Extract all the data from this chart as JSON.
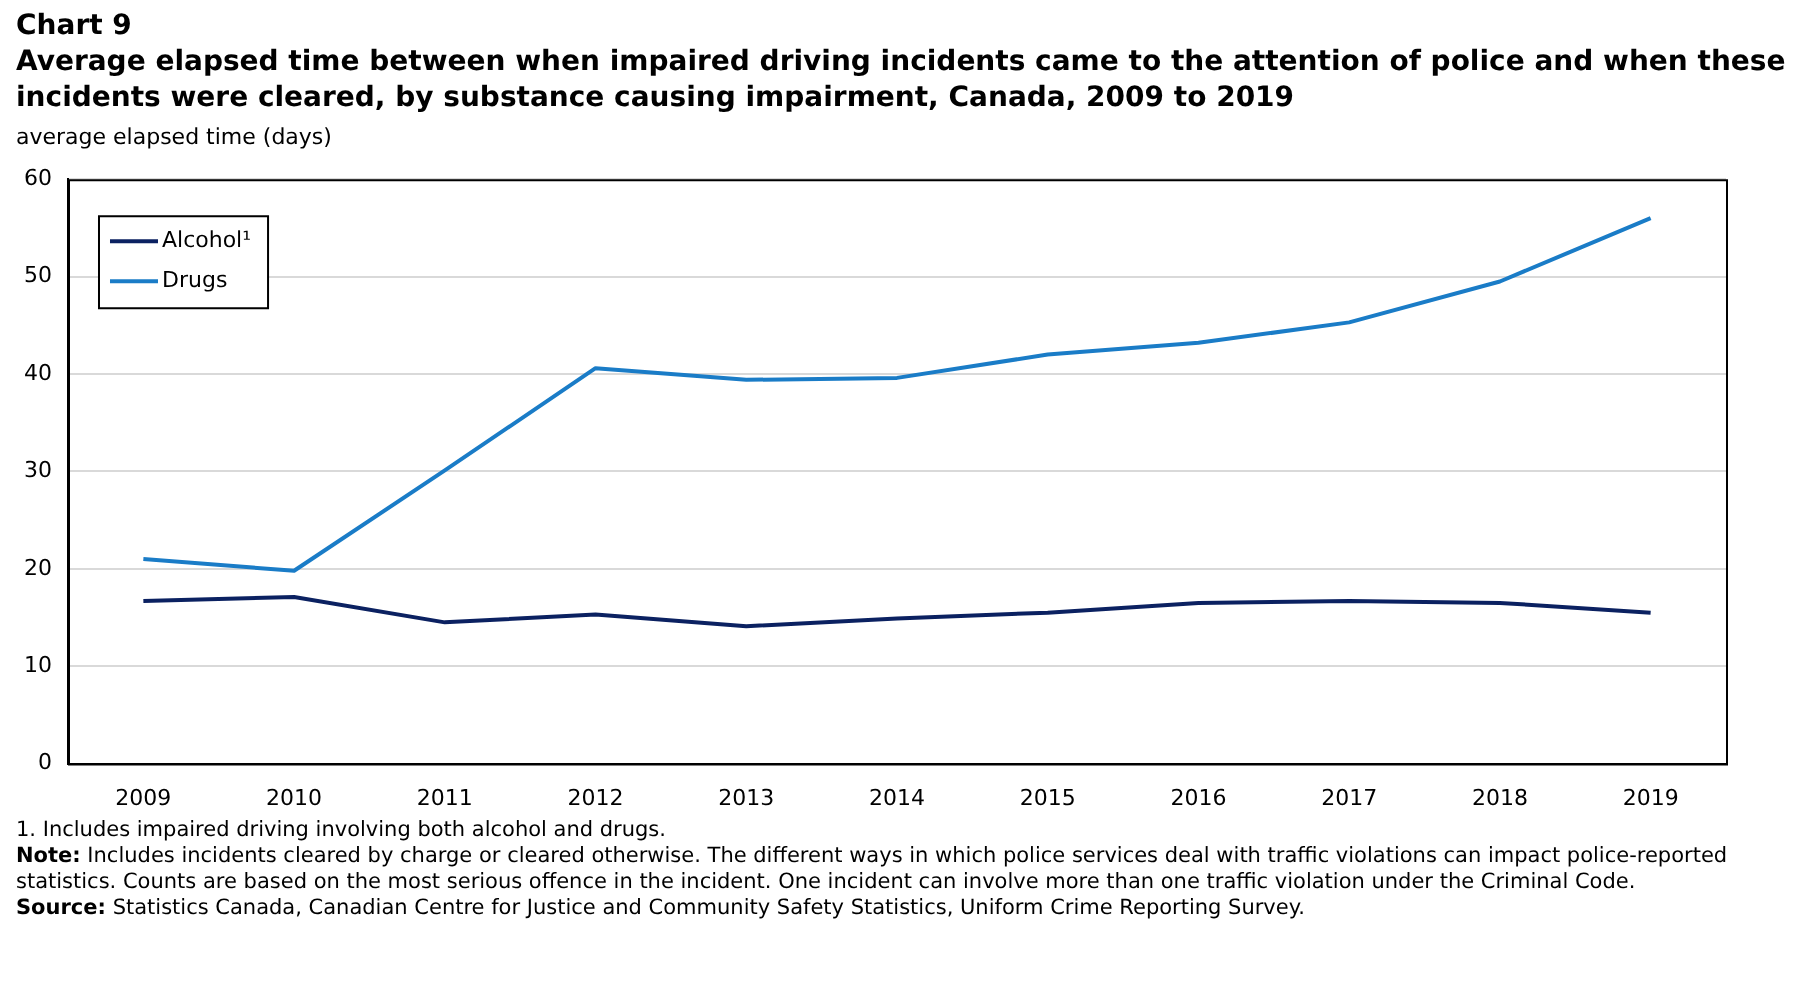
{
  "chart_data": {
    "type": "line",
    "title": "Chart 9",
    "subtitle": "Average elapsed time between when impaired driving incidents came to the attention of police and when these incidents were cleared, by substance causing impairment, Canada, 2009 to 2019",
    "ylabel": "average elapsed time (days)",
    "categories": [
      "2009",
      "2010",
      "2011",
      "2012",
      "2013",
      "2014",
      "2015",
      "2016",
      "2017",
      "2018",
      "2019"
    ],
    "series": [
      {
        "name": "Alcohol¹",
        "color": "#0b2161",
        "values": [
          16.7,
          17.1,
          14.5,
          15.3,
          14.1,
          14.9,
          15.5,
          16.5,
          16.7,
          16.5,
          15.5
        ]
      },
      {
        "name": "Drugs",
        "color": "#1a7cc7",
        "values": [
          21.0,
          19.8,
          30.1,
          40.6,
          39.4,
          39.6,
          42.0,
          43.2,
          45.3,
          49.5,
          56.0
        ]
      }
    ],
    "ylim": [
      0,
      60
    ],
    "yticks": [
      0,
      10,
      20,
      30,
      40,
      50,
      60
    ],
    "grid": "y",
    "legend": "top left",
    "marker": "none",
    "line_style": "solid",
    "annotations": [
      "1. Includes impaired driving involving both alcohol and drugs.",
      "Note: Includes incidents cleared by charge or cleared otherwise. The different ways in which police services deal with traffic violations can impact police-reported statistics. Counts are based on the most serious offence in the incident. One incident can involve more than one traffic violation under the Criminal Code.",
      "Source: Statistics Canada, Canadian Centre for Justice and Community Safety Statistics, Uniform Crime Reporting Survey."
    ]
  }
}
